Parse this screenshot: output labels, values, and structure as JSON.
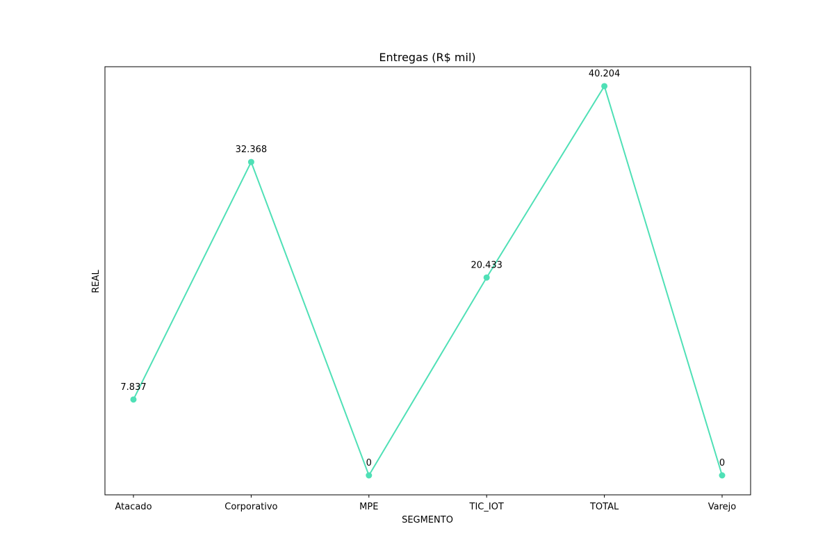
{
  "chart_data": {
    "type": "line",
    "title": "Entregas (R$ mil)",
    "xlabel": "SEGMENTO",
    "ylabel": "REAL",
    "categories": [
      "Atacado",
      "Corporativo",
      "MPE",
      "TIC_IOT",
      "TOTAL",
      "Varejo"
    ],
    "series": [
      {
        "values": [
          7.837,
          32.368,
          0,
          20.433,
          40.204,
          0
        ],
        "labels": [
          "7.837",
          "32.368",
          "0",
          "20.433",
          "40.204",
          "0"
        ],
        "color": "#4fe0b6",
        "marker": "circle"
      }
    ],
    "ylim": [
      -2.01,
      42.21
    ],
    "y_ticks_shown": false,
    "grid": false,
    "legend": "none"
  }
}
